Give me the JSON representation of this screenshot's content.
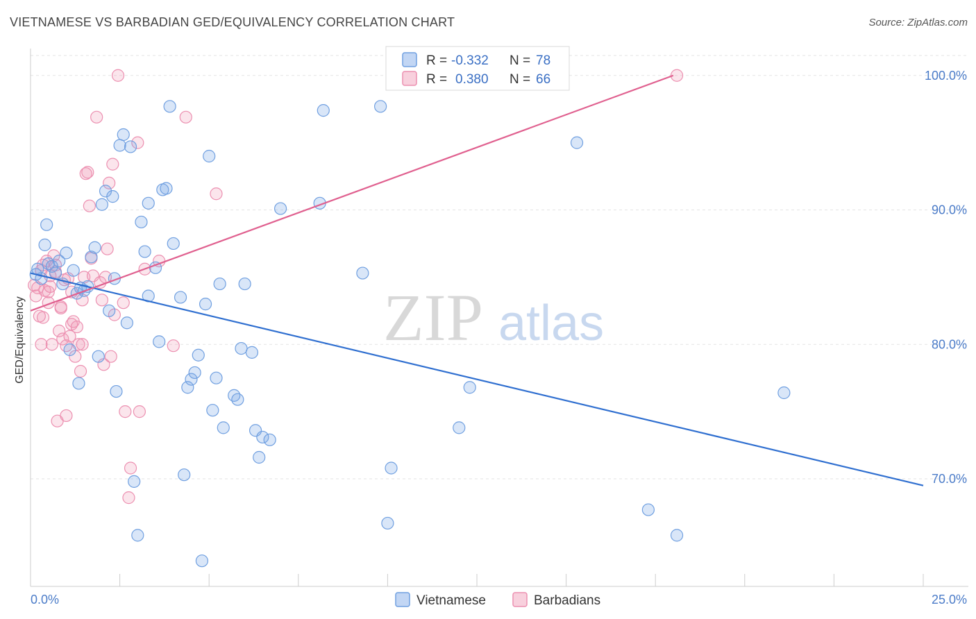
{
  "title": "VIETNAMESE VS BARBADIAN GED/EQUIVALENCY CORRELATION CHART",
  "source": "Source: ZipAtlas.com",
  "watermark": {
    "zip": "ZIP",
    "atlas": "atlas"
  },
  "colors": {
    "blue": "#6f9fe0",
    "blue_fill": "rgba(120,165,230,0.28)",
    "blue_line": "#2f6fd0",
    "pink": "#ec8fb0",
    "pink_fill": "rgba(240,150,180,0.25)",
    "pink_line": "#e0608f",
    "grid": "#e3e3e3",
    "tick_label": "#4a7bc8"
  },
  "legend_top": {
    "r_label": "R =",
    "n_label": "N =",
    "entries": [
      {
        "r": "-0.332",
        "n": "78"
      },
      {
        "r": "0.380",
        "n": "66"
      }
    ]
  },
  "chart_data": {
    "type": "scatter",
    "ylabel": "GED/Equivalency",
    "xlim": [
      0,
      25
    ],
    "ylim": [
      62,
      102
    ],
    "x_tick_labels": [
      "0.0%",
      "25.0%"
    ],
    "y_ticks": [
      70,
      80,
      90,
      100
    ],
    "y_tick_labels": [
      "70.0%",
      "80.0%",
      "90.0%",
      "100.0%"
    ],
    "grid": true,
    "legend_position": "bottom",
    "series": [
      {
        "name": "Vietnamese",
        "color": "blue",
        "r": -0.332,
        "n": 78,
        "trend": {
          "x0": 0,
          "y0": 85.3,
          "x1": 25,
          "y1": 69.5
        },
        "points": [
          [
            0.2,
            85.6
          ],
          [
            0.3,
            84.9
          ],
          [
            0.4,
            87.4
          ],
          [
            0.5,
            86.0
          ],
          [
            0.6,
            85.8
          ],
          [
            0.7,
            85.3
          ],
          [
            0.8,
            86.2
          ],
          [
            0.9,
            84.5
          ],
          [
            1.0,
            86.8
          ],
          [
            1.1,
            79.6
          ],
          [
            1.2,
            85.5
          ],
          [
            1.3,
            83.8
          ],
          [
            1.4,
            84.2
          ],
          [
            1.5,
            84.0
          ],
          [
            1.6,
            84.3
          ],
          [
            1.7,
            86.5
          ],
          [
            1.8,
            87.2
          ],
          [
            1.9,
            79.1
          ],
          [
            2.0,
            90.4
          ],
          [
            2.1,
            91.4
          ],
          [
            2.2,
            82.5
          ],
          [
            2.3,
            91.0
          ],
          [
            2.4,
            76.5
          ],
          [
            2.5,
            94.8
          ],
          [
            2.6,
            95.6
          ],
          [
            2.7,
            81.6
          ],
          [
            2.8,
            94.7
          ],
          [
            2.9,
            69.8
          ],
          [
            3.0,
            65.8
          ],
          [
            3.1,
            89.1
          ],
          [
            3.2,
            86.9
          ],
          [
            3.3,
            83.6
          ],
          [
            3.3,
            90.5
          ],
          [
            3.5,
            85.7
          ],
          [
            3.6,
            80.2
          ],
          [
            3.7,
            91.5
          ],
          [
            3.8,
            91.6
          ],
          [
            3.9,
            97.7
          ],
          [
            4.0,
            87.5
          ],
          [
            4.2,
            83.5
          ],
          [
            4.3,
            70.3
          ],
          [
            4.4,
            76.8
          ],
          [
            4.5,
            77.4
          ],
          [
            4.6,
            77.9
          ],
          [
            4.7,
            79.2
          ],
          [
            4.8,
            63.9
          ],
          [
            4.9,
            83.0
          ],
          [
            5.0,
            94.0
          ],
          [
            5.1,
            75.1
          ],
          [
            5.2,
            77.5
          ],
          [
            5.3,
            84.5
          ],
          [
            5.4,
            73.8
          ],
          [
            5.7,
            76.2
          ],
          [
            5.8,
            75.9
          ],
          [
            5.9,
            79.7
          ],
          [
            6.0,
            84.5
          ],
          [
            6.2,
            79.4
          ],
          [
            6.3,
            73.6
          ],
          [
            6.4,
            71.6
          ],
          [
            6.5,
            73.1
          ],
          [
            6.7,
            72.9
          ],
          [
            7.0,
            90.1
          ],
          [
            8.1,
            90.5
          ],
          [
            8.2,
            97.4
          ],
          [
            9.3,
            85.3
          ],
          [
            9.8,
            97.7
          ],
          [
            10.0,
            66.7
          ],
          [
            10.1,
            70.8
          ],
          [
            12.0,
            73.8
          ],
          [
            12.3,
            76.8
          ],
          [
            15.3,
            95.0
          ],
          [
            17.3,
            67.7
          ],
          [
            18.1,
            65.8
          ],
          [
            21.1,
            76.4
          ],
          [
            0.15,
            85.2
          ],
          [
            1.35,
            77.1
          ],
          [
            0.45,
            88.9
          ],
          [
            2.35,
            84.9
          ]
        ]
      },
      {
        "name": "Barbadians",
        "color": "pink",
        "r": 0.38,
        "n": 66,
        "trend": {
          "x0": 0,
          "y0": 82.5,
          "x1": 18.0,
          "y1": 100.0
        },
        "points": [
          [
            0.1,
            84.4
          ],
          [
            0.2,
            84.2
          ],
          [
            0.3,
            85.5
          ],
          [
            0.3,
            80.0
          ],
          [
            0.35,
            82.0
          ],
          [
            0.4,
            84.0
          ],
          [
            0.45,
            86.2
          ],
          [
            0.5,
            83.1
          ],
          [
            0.5,
            83.9
          ],
          [
            0.55,
            84.3
          ],
          [
            0.6,
            80.0
          ],
          [
            0.65,
            86.6
          ],
          [
            0.7,
            85.4
          ],
          [
            0.75,
            74.3
          ],
          [
            0.8,
            81.0
          ],
          [
            0.85,
            82.7
          ],
          [
            0.9,
            80.4
          ],
          [
            0.95,
            84.8
          ],
          [
            1.0,
            74.7
          ],
          [
            1.05,
            84.9
          ],
          [
            1.1,
            80.6
          ],
          [
            1.15,
            81.5
          ],
          [
            1.2,
            81.7
          ],
          [
            1.25,
            79.1
          ],
          [
            1.3,
            81.3
          ],
          [
            1.35,
            80.0
          ],
          [
            1.4,
            78.0
          ],
          [
            1.45,
            83.3
          ],
          [
            1.5,
            85.0
          ],
          [
            1.55,
            92.7
          ],
          [
            1.6,
            92.8
          ],
          [
            1.65,
            90.3
          ],
          [
            1.7,
            86.4
          ],
          [
            1.75,
            85.1
          ],
          [
            1.85,
            96.9
          ],
          [
            1.95,
            84.6
          ],
          [
            2.0,
            83.3
          ],
          [
            2.05,
            78.5
          ],
          [
            2.15,
            87.1
          ],
          [
            2.2,
            92.0
          ],
          [
            2.25,
            79.1
          ],
          [
            2.3,
            93.4
          ],
          [
            2.35,
            82.2
          ],
          [
            2.45,
            100.0
          ],
          [
            2.6,
            83.1
          ],
          [
            2.75,
            68.6
          ],
          [
            2.8,
            70.8
          ],
          [
            3.0,
            95.0
          ],
          [
            3.05,
            75.0
          ],
          [
            3.2,
            85.6
          ],
          [
            3.6,
            86.2
          ],
          [
            4.0,
            79.9
          ],
          [
            4.35,
            96.9
          ],
          [
            5.2,
            91.2
          ],
          [
            18.1,
            100.0
          ],
          [
            0.25,
            82.1
          ],
          [
            0.7,
            85.9
          ],
          [
            1.15,
            83.9
          ],
          [
            0.15,
            83.6
          ],
          [
            0.55,
            85.1
          ],
          [
            1.0,
            79.9
          ],
          [
            2.65,
            75.0
          ],
          [
            0.85,
            82.8
          ],
          [
            0.35,
            85.9
          ],
          [
            1.45,
            80.0
          ],
          [
            2.1,
            85.0
          ]
        ]
      }
    ]
  }
}
